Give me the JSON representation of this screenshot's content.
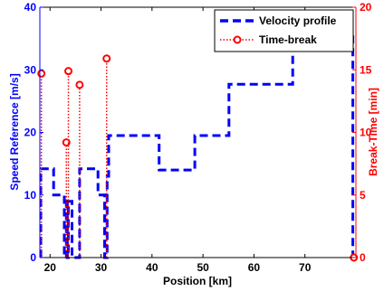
{
  "chart_data": {
    "type": "line",
    "xlabel": "Position [km]",
    "ylabel_left": "Speed Reference [m/s]",
    "ylabel_right": "Break-Time [min]",
    "xlim": [
      18,
      80
    ],
    "ylim_left": [
      0,
      40
    ],
    "ylim_right": [
      0,
      20
    ],
    "x_ticks": [
      20,
      30,
      40,
      50,
      60,
      70
    ],
    "y_ticks_left": [
      0,
      10,
      20,
      30,
      40
    ],
    "y_ticks_right": [
      0,
      5,
      10,
      15,
      20
    ],
    "grid": false,
    "legend_position": "top-right",
    "colors": {
      "velocity": "#0000ff",
      "time_break": "#ff0000",
      "axis": "#000000"
    },
    "series": [
      {
        "name": "Velocity profile",
        "axis": "left",
        "style": "dashed",
        "x": [
          18.2,
          18.2,
          20.7,
          20.7,
          22.8,
          22.8,
          23.2,
          23.2,
          23.4,
          23.4,
          23.6,
          23.6,
          24.3,
          24.3,
          25.8,
          25.8,
          26.1,
          26.1,
          29.4,
          29.4,
          30.7,
          30.7,
          31.2,
          31.2,
          31.5,
          31.5,
          41.4,
          41.4,
          48.4,
          48.4,
          55.1,
          55.1,
          67.6,
          67.6,
          79.4,
          79.4
        ],
        "y": [
          0,
          14.2,
          14.2,
          10,
          10,
          0,
          0,
          9.5,
          9.5,
          0,
          0,
          9,
          9,
          0,
          0,
          14.2,
          14.2,
          14.2,
          14.2,
          10,
          10,
          0,
          0,
          13,
          13,
          19.5,
          19.5,
          14,
          14,
          19.5,
          19.5,
          27.7,
          27.7,
          35.5,
          35.5,
          0
        ]
      },
      {
        "name": "Time-break",
        "axis": "right",
        "style": "dotted-stem",
        "x": [
          18.3,
          23.2,
          23.6,
          25.8,
          31.1,
          79.6
        ],
        "y": [
          14.7,
          9.2,
          14.9,
          13.8,
          15.9,
          0
        ]
      }
    ]
  }
}
